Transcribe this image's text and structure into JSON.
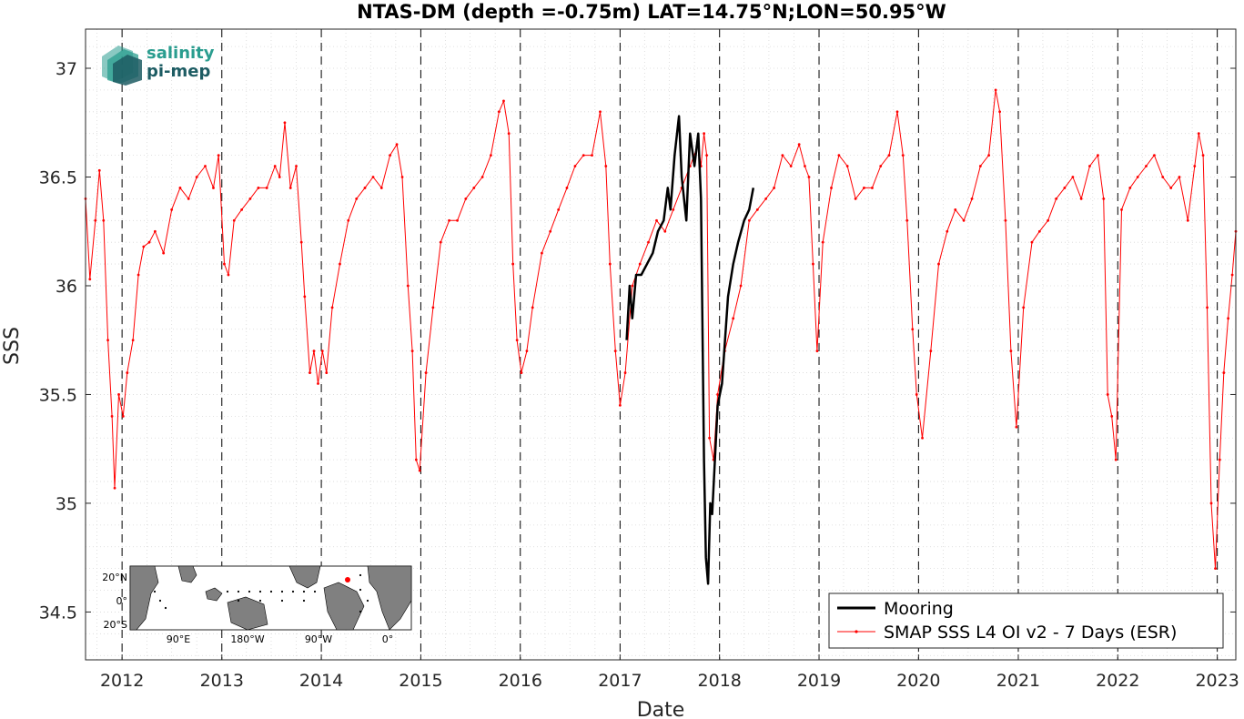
{
  "chart_data": {
    "type": "line",
    "title": "NTAS-DM (depth =-0.75m) LAT=14.75°N;LON=50.95°W",
    "xlabel": "Date",
    "ylabel": "SSS",
    "xlim": [
      "2011-08-20",
      "2023-03-10"
    ],
    "ylim": [
      34.28,
      37.18
    ],
    "x_ticks": [
      "2012",
      "2013",
      "2014",
      "2015",
      "2016",
      "2017",
      "2018",
      "2019",
      "2020",
      "2021",
      "2022",
      "2023"
    ],
    "y_ticks": [
      "34.5",
      "35",
      "35.5",
      "36",
      "36.5",
      "37"
    ],
    "grid": "on (dotted major and minor)",
    "year_boundaries": "dashed vertical lines at each Jan 1",
    "legend_position": "bottom-right",
    "series": [
      {
        "name": "SMAP SSS L4 OI v2 - 7 Days (ESR)",
        "color": "#ff0000",
        "marker": "dot",
        "x": [
          "2011-08-20",
          "2011-09-05",
          "2011-09-25",
          "2011-10-10",
          "2011-10-25",
          "2011-11-10",
          "2011-11-25",
          "2011-12-05",
          "2011-12-20",
          "2012-01-05",
          "2012-01-20",
          "2012-02-10",
          "2012-03-01",
          "2012-03-20",
          "2012-04-10",
          "2012-05-01",
          "2012-06-01",
          "2012-07-01",
          "2012-08-01",
          "2012-09-01",
          "2012-10-01",
          "2012-11-01",
          "2012-12-01",
          "2012-12-20",
          "2013-01-10",
          "2013-01-25",
          "2013-02-15",
          "2013-03-15",
          "2013-04-15",
          "2013-05-15",
          "2013-06-15",
          "2013-07-15",
          "2013-08-01",
          "2013-08-20",
          "2013-09-10",
          "2013-10-01",
          "2013-10-20",
          "2013-11-01",
          "2013-11-20",
          "2013-12-05",
          "2013-12-20",
          "2014-01-05",
          "2014-01-20",
          "2014-02-10",
          "2014-03-10",
          "2014-04-10",
          "2014-05-10",
          "2014-06-10",
          "2014-07-10",
          "2014-08-10",
          "2014-09-10",
          "2014-10-05",
          "2014-10-25",
          "2014-11-15",
          "2014-12-01",
          "2014-12-15",
          "2014-12-28",
          "2015-01-20",
          "2015-02-15",
          "2015-03-15",
          "2015-04-15",
          "2015-05-15",
          "2015-06-15",
          "2015-07-15",
          "2015-08-15",
          "2015-09-15",
          "2015-10-15",
          "2015-11-01",
          "2015-11-20",
          "2015-12-05",
          "2015-12-20",
          "2016-01-05",
          "2016-01-25",
          "2016-02-15",
          "2016-03-20",
          "2016-04-20",
          "2016-05-20",
          "2016-06-20",
          "2016-07-20",
          "2016-08-20",
          "2016-09-20",
          "2016-10-20",
          "2016-11-10",
          "2016-11-25",
          "2016-12-15",
          "2017-01-01",
          "2017-01-20",
          "2017-02-15",
          "2017-03-15",
          "2017-04-15",
          "2017-05-15",
          "2017-06-15",
          "2017-07-15",
          "2017-08-15",
          "2017-09-15",
          "2017-10-15",
          "2017-10-25",
          "2017-11-05",
          "2017-11-15",
          "2017-11-25",
          "2017-12-10",
          "2017-12-25",
          "2018-01-20",
          "2018-02-20",
          "2018-03-20",
          "2018-04-20",
          "2018-05-20",
          "2018-06-20",
          "2018-07-20",
          "2018-08-20",
          "2018-09-20",
          "2018-10-20",
          "2018-11-10",
          "2018-11-25",
          "2018-12-10",
          "2018-12-25",
          "2019-01-15",
          "2019-02-15",
          "2019-03-15",
          "2019-04-15",
          "2019-05-15",
          "2019-06-15",
          "2019-07-15",
          "2019-08-15",
          "2019-09-15",
          "2019-10-15",
          "2019-11-05",
          "2019-11-20",
          "2019-12-10",
          "2019-12-25",
          "2020-01-15",
          "2020-02-15",
          "2020-03-15",
          "2020-04-15",
          "2020-05-15",
          "2020-06-15",
          "2020-07-15",
          "2020-08-15",
          "2020-09-15",
          "2020-10-10",
          "2020-10-25",
          "2020-11-15",
          "2020-12-05",
          "2020-12-25",
          "2021-01-20",
          "2021-02-20",
          "2021-03-20",
          "2021-04-20",
          "2021-05-20",
          "2021-06-20",
          "2021-07-20",
          "2021-08-20",
          "2021-09-20",
          "2021-10-20",
          "2021-11-10",
          "2021-11-25",
          "2021-12-10",
          "2021-12-25",
          "2022-01-15",
          "2022-02-15",
          "2022-03-15",
          "2022-04-15",
          "2022-05-15",
          "2022-06-15",
          "2022-07-15",
          "2022-08-15",
          "2022-09-15",
          "2022-10-10",
          "2022-10-25",
          "2022-11-10",
          "2022-11-25",
          "2022-12-10",
          "2022-12-25",
          "2023-01-10",
          "2023-01-25",
          "2023-02-10",
          "2023-02-25",
          "2023-03-10"
        ],
        "y": [
          36.4,
          36.03,
          36.3,
          36.53,
          36.3,
          35.75,
          35.4,
          35.07,
          35.5,
          35.4,
          35.6,
          35.75,
          36.05,
          36.18,
          36.2,
          36.25,
          36.15,
          36.35,
          36.45,
          36.4,
          36.5,
          36.55,
          36.45,
          36.6,
          36.1,
          36.05,
          36.3,
          36.35,
          36.4,
          36.45,
          36.45,
          36.55,
          36.5,
          36.75,
          36.45,
          36.55,
          36.2,
          35.95,
          35.6,
          35.7,
          35.55,
          35.7,
          35.6,
          35.9,
          36.1,
          36.3,
          36.4,
          36.45,
          36.5,
          36.45,
          36.6,
          36.65,
          36.5,
          36.0,
          35.7,
          35.2,
          35.15,
          35.6,
          35.9,
          36.2,
          36.3,
          36.3,
          36.4,
          36.45,
          36.5,
          36.6,
          36.8,
          36.85,
          36.7,
          36.1,
          35.75,
          35.6,
          35.7,
          35.9,
          36.15,
          36.25,
          36.35,
          36.45,
          36.55,
          36.6,
          36.6,
          36.8,
          36.55,
          36.1,
          35.7,
          35.45,
          35.6,
          36.0,
          36.1,
          36.2,
          36.3,
          36.25,
          36.35,
          36.45,
          36.55,
          36.65,
          36.55,
          36.7,
          36.6,
          35.3,
          35.2,
          35.5,
          35.7,
          35.85,
          36.0,
          36.3,
          36.35,
          36.4,
          36.45,
          36.6,
          36.55,
          36.65,
          36.55,
          36.5,
          36.1,
          35.7,
          36.2,
          36.45,
          36.6,
          36.55,
          36.4,
          36.45,
          36.45,
          36.55,
          36.6,
          36.8,
          36.6,
          36.3,
          35.8,
          35.5,
          35.3,
          35.7,
          36.1,
          36.25,
          36.35,
          36.3,
          36.4,
          36.55,
          36.6,
          36.9,
          36.8,
          36.3,
          35.7,
          35.35,
          35.9,
          36.2,
          36.25,
          36.3,
          36.4,
          36.45,
          36.5,
          36.4,
          36.55,
          36.6,
          36.4,
          35.5,
          35.4,
          35.2,
          36.35,
          36.45,
          36.5,
          36.55,
          36.6,
          36.5,
          36.45,
          36.5,
          36.3,
          36.55,
          36.7,
          36.6,
          35.9,
          35.0,
          34.7,
          35.2,
          35.6,
          35.85,
          36.05,
          36.25
        ]
      },
      {
        "name": "Mooring",
        "color": "#000000",
        "marker": "none",
        "x": [
          "2017-01-25",
          "2017-02-05",
          "2017-02-15",
          "2017-03-01",
          "2017-03-20",
          "2017-04-10",
          "2017-05-01",
          "2017-05-20",
          "2017-06-10",
          "2017-06-25",
          "2017-07-05",
          "2017-07-20",
          "2017-08-05",
          "2017-08-15",
          "2017-09-01",
          "2017-09-15",
          "2017-10-01",
          "2017-10-15",
          "2017-10-25",
          "2017-11-05",
          "2017-11-12",
          "2017-11-20",
          "2017-11-28",
          "2017-12-05",
          "2017-12-15",
          "2017-12-25",
          "2018-01-10",
          "2018-02-01",
          "2018-02-20",
          "2018-03-10",
          "2018-04-01",
          "2018-04-20",
          "2018-05-05"
        ],
        "y": [
          35.75,
          36.0,
          35.85,
          36.05,
          36.05,
          36.1,
          36.15,
          36.25,
          36.3,
          36.45,
          36.35,
          36.6,
          36.78,
          36.5,
          36.3,
          36.7,
          36.55,
          36.7,
          36.4,
          35.2,
          34.75,
          34.63,
          35.0,
          34.95,
          35.2,
          35.45,
          35.55,
          35.95,
          36.1,
          36.2,
          36.3,
          36.35,
          36.45
        ]
      }
    ]
  },
  "legend": {
    "mooring_label": "Mooring",
    "smap_label": "SMAP SSS L4 OI v2 - 7 Days (ESR)"
  },
  "logo": {
    "line1": "salinity",
    "line2": "pi-mep"
  },
  "inset_map": {
    "lat_labels": [
      "20°N",
      "0°",
      "20°S"
    ],
    "lon_labels": [
      "90°E",
      "180°W",
      "90°W",
      "0°"
    ]
  },
  "colors": {
    "smap": "#ff0000",
    "mooring": "#000000",
    "grid": "#d0d0d0",
    "land": "#808080",
    "logo_teal": "#2a9d8f",
    "logo_dark": "#1d5c63"
  }
}
